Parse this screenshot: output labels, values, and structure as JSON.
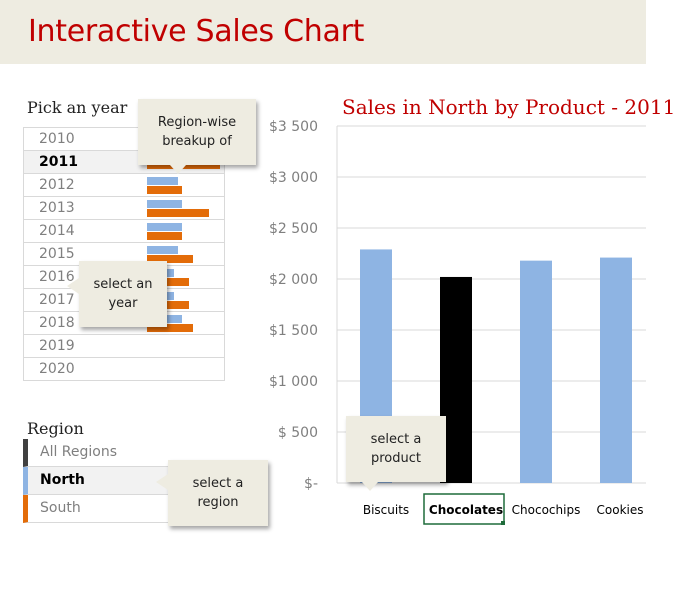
{
  "header": {
    "title": "Interactive Sales Chart"
  },
  "year_picker": {
    "label": "Pick an year",
    "selected": "2011",
    "years": [
      "2010",
      "2011",
      "2012",
      "2013",
      "2014",
      "2015",
      "2016",
      "2017",
      "2018",
      "2019",
      "2020"
    ],
    "mini_bars": [
      {
        "year": "2011",
        "blue": null,
        "orange": 0.95
      },
      {
        "year": "2012",
        "blue": 0.4,
        "orange": 0.45
      },
      {
        "year": "2013",
        "blue": 0.45,
        "orange": 0.8
      },
      {
        "year": "2014",
        "blue": 0.45,
        "orange": 0.45
      },
      {
        "year": "2015",
        "blue": 0.4,
        "orange": 0.6
      },
      {
        "year": "2016",
        "blue": 0.35,
        "orange": 0.55
      },
      {
        "year": "2017",
        "blue": 0.35,
        "orange": 0.55
      },
      {
        "year": "2018",
        "blue": 0.45,
        "orange": 0.6
      }
    ]
  },
  "region_picker": {
    "label": "Region",
    "selected": "North",
    "items": [
      {
        "label": "All Regions",
        "color": "#404040"
      },
      {
        "label": "North",
        "color": "#8eb4e3"
      },
      {
        "label": "South",
        "color": "#e36c09"
      }
    ]
  },
  "callouts": {
    "region_wise": "Region-wise breakup of",
    "select_year": "select an year",
    "select_region": "select a region",
    "select_product": "select a product"
  },
  "chart_data": {
    "type": "bar",
    "title": "Sales in North by Product - 2011",
    "categories": [
      "Biscuits",
      "Chocolates",
      "Chocochips",
      "Cookies"
    ],
    "values": [
      2290,
      2020,
      2180,
      2210
    ],
    "selected_category": "Chocolates",
    "ylim": [
      0,
      3500
    ],
    "yticks": [
      0,
      500,
      1000,
      1500,
      2000,
      2500,
      3000,
      3500
    ],
    "ytick_labels": [
      "$-",
      "$ 500",
      "$1 000",
      "$1 500",
      "$2 000",
      "$2 500",
      "$3 000",
      "$3 500"
    ],
    "colors": {
      "bar": "#8eb4e3",
      "selected": "#000000",
      "title": "#c00000"
    },
    "grid": true
  }
}
